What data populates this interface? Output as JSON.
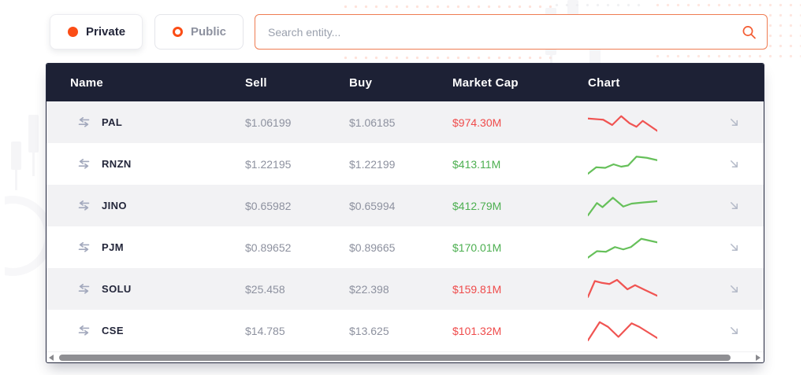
{
  "filters": {
    "private_label": "Private",
    "public_label": "Public"
  },
  "search": {
    "placeholder": "Search entity..."
  },
  "table": {
    "columns": [
      "Name",
      "Sell",
      "Buy",
      "Market Cap",
      "Chart"
    ],
    "rows": [
      {
        "name": "PAL",
        "sell": "$1.06199",
        "buy": "$1.06185",
        "market_cap": "$974.30M",
        "trend": "down",
        "spark": [
          [
            0,
            13
          ],
          [
            22,
            15
          ],
          [
            35,
            24
          ],
          [
            48,
            9
          ],
          [
            60,
            21
          ],
          [
            70,
            27
          ],
          [
            79,
            17
          ],
          [
            100,
            34
          ]
        ]
      },
      {
        "name": "RNZN",
        "sell": "$1.22195",
        "buy": "$1.22199",
        "market_cap": "$413.11M",
        "trend": "up",
        "spark": [
          [
            0,
            36
          ],
          [
            12,
            25
          ],
          [
            25,
            26
          ],
          [
            37,
            20
          ],
          [
            48,
            24
          ],
          [
            58,
            22
          ],
          [
            70,
            7
          ],
          [
            85,
            9
          ],
          [
            100,
            13
          ]
        ]
      },
      {
        "name": "JINO",
        "sell": "$0.65982",
        "buy": "$0.65994",
        "market_cap": "$412.79M",
        "trend": "up",
        "spark": [
          [
            0,
            36
          ],
          [
            13,
            15
          ],
          [
            21,
            22
          ],
          [
            36,
            6
          ],
          [
            51,
            21
          ],
          [
            63,
            16
          ],
          [
            80,
            14
          ],
          [
            100,
            12
          ]
        ]
      },
      {
        "name": "PJM",
        "sell": "$0.89652",
        "buy": "$0.89665",
        "market_cap": "$170.01M",
        "trend": "up",
        "spark": [
          [
            0,
            37
          ],
          [
            13,
            26
          ],
          [
            26,
            27
          ],
          [
            39,
            19
          ],
          [
            51,
            23
          ],
          [
            62,
            19
          ],
          [
            77,
            5
          ],
          [
            100,
            11
          ]
        ]
      },
      {
        "name": "SOLU",
        "sell": "$25.458",
        "buy": "$22.398",
        "market_cap": "$159.81M",
        "trend": "down",
        "spark": [
          [
            0,
            33
          ],
          [
            10,
            6
          ],
          [
            20,
            9
          ],
          [
            31,
            11
          ],
          [
            42,
            4
          ],
          [
            57,
            20
          ],
          [
            68,
            13
          ],
          [
            82,
            21
          ],
          [
            100,
            31
          ]
        ]
      },
      {
        "name": "CSE",
        "sell": "$14.785",
        "buy": "$13.625",
        "market_cap": "$101.32M",
        "trend": "down",
        "spark": [
          [
            0,
            36
          ],
          [
            17,
            5
          ],
          [
            29,
            13
          ],
          [
            44,
            30
          ],
          [
            63,
            7
          ],
          [
            74,
            13
          ],
          [
            100,
            32
          ]
        ]
      }
    ]
  },
  "colors": {
    "accent": "#fb4d16",
    "header_navy": "#1d2135",
    "up_text": "#4caf50",
    "down_text": "#ef4b4b",
    "up_line": "#66c05a",
    "down_line": "#f05452"
  }
}
